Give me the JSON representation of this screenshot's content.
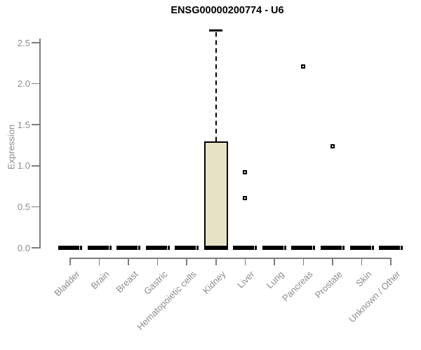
{
  "page": {
    "background": "#ffffff"
  },
  "chart_data": {
    "type": "boxplot",
    "title": "ENSG00000200774 - U6",
    "ylabel": "Expression",
    "xlabel": "",
    "ylim": [
      0,
      2.65
    ],
    "yticks": [
      "0.0",
      "0.5",
      "1.0",
      "1.5",
      "2.0",
      "2.5"
    ],
    "grid": false,
    "legend": "none",
    "categories": [
      "Bladder",
      "Brain",
      "Breast",
      "Gastric",
      "Hematopoietic cells",
      "Kidney",
      "Liver",
      "Lung",
      "Pancreas",
      "Prostate",
      "Skin",
      "Unknown / Other"
    ],
    "boxes": [
      {
        "category": "Bladder",
        "whisker_low": 0,
        "q1": 0,
        "median": 0,
        "q3": 0,
        "whisker_high": 0,
        "outliers": []
      },
      {
        "category": "Brain",
        "whisker_low": 0,
        "q1": 0,
        "median": 0,
        "q3": 0,
        "whisker_high": 0,
        "outliers": []
      },
      {
        "category": "Breast",
        "whisker_low": 0,
        "q1": 0,
        "median": 0,
        "q3": 0,
        "whisker_high": 0,
        "outliers": []
      },
      {
        "category": "Gastric",
        "whisker_low": 0,
        "q1": 0,
        "median": 0,
        "q3": 0,
        "whisker_high": 0,
        "outliers": []
      },
      {
        "category": "Hematopoietic cells",
        "whisker_low": 0,
        "q1": 0,
        "median": 0,
        "q3": 0,
        "whisker_high": 0,
        "outliers": []
      },
      {
        "category": "Kidney",
        "whisker_low": 0,
        "q1": 0,
        "median": 0,
        "q3": 1.3,
        "whisker_high": 2.65,
        "outliers": []
      },
      {
        "category": "Liver",
        "whisker_low": 0,
        "q1": 0,
        "median": 0,
        "q3": 0,
        "whisker_high": 0,
        "outliers": [
          0.92,
          0.61
        ]
      },
      {
        "category": "Lung",
        "whisker_low": 0,
        "q1": 0,
        "median": 0,
        "q3": 0,
        "whisker_high": 0,
        "outliers": []
      },
      {
        "category": "Pancreas",
        "whisker_low": 0,
        "q1": 0,
        "median": 0,
        "q3": 0,
        "whisker_high": 0,
        "outliers": [
          2.21
        ]
      },
      {
        "category": "Prostate",
        "whisker_low": 0,
        "q1": 0,
        "median": 0,
        "q3": 0,
        "whisker_high": 0,
        "outliers": [
          1.24
        ]
      },
      {
        "category": "Skin",
        "whisker_low": 0,
        "q1": 0,
        "median": 0,
        "q3": 0,
        "whisker_high": 0,
        "outliers": []
      },
      {
        "category": "Unknown / Other",
        "whisker_low": 0,
        "q1": 0,
        "median": 0,
        "q3": 0,
        "whisker_high": 0,
        "outliers": []
      }
    ],
    "colors": {
      "box_fill": "#e8e3c6",
      "box_border": "#000000",
      "collapsed_box": "#000000",
      "outlier_border": "#000000",
      "outlier_fill": "#ffffff",
      "axis_line": "#7d7d7d",
      "tick_label": "#8c8c8c",
      "title": "#000000",
      "background": "#ffffff"
    }
  }
}
